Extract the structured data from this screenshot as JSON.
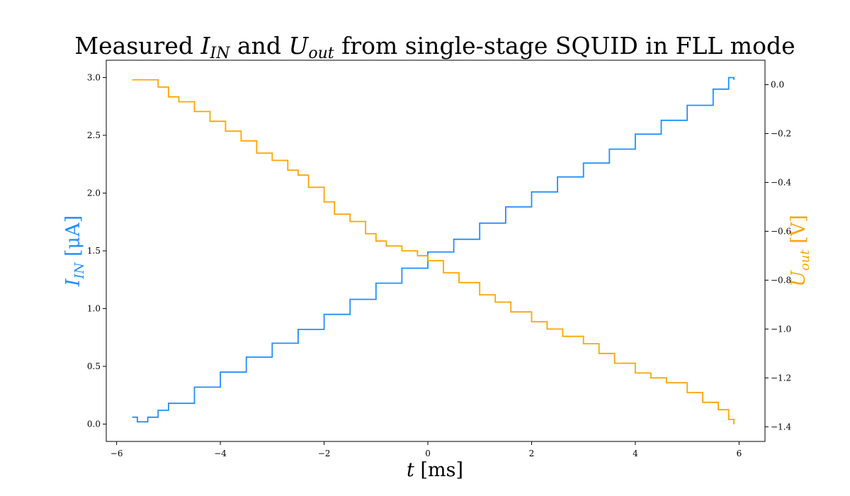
{
  "chart_data": {
    "type": "line",
    "title": {
      "prefix": "Measured ",
      "v1": "I",
      "v1_sub": "IN",
      "mid": " and ",
      "v2": "U",
      "v2_sub": "out",
      "suffix": " from single-stage SQUID in FLL mode"
    },
    "xlabel": {
      "var": "t",
      "unit": " [ms]"
    },
    "ylabel_left": {
      "var": "I",
      "sub": "IN",
      "unit": " [μA]"
    },
    "ylabel_right": {
      "var": "U",
      "sub": "out",
      "unit": " [V]"
    },
    "xlim": [
      -6.2,
      6.5
    ],
    "ylim_left": [
      -0.15,
      3.15
    ],
    "ylim_right": [
      -1.46,
      0.1
    ],
    "xticks": [
      "−6",
      "−4",
      "−2",
      "0",
      "2",
      "4",
      "6"
    ],
    "yticks_left": [
      "0.0",
      "0.5",
      "1.0",
      "1.5",
      "2.0",
      "2.5",
      "3.0"
    ],
    "yticks_right": [
      "0.0",
      "−0.2",
      "−0.4",
      "−0.6",
      "−0.8",
      "−1.0",
      "−1.2",
      "−1.4"
    ],
    "grid": false,
    "colors": {
      "series1": "#1f8fff",
      "series2": "#ffa500"
    },
    "series": [
      {
        "axis": "left",
        "x": [
          -5.7,
          -5.6,
          -5.4,
          -5.2,
          -5.0,
          -4.5,
          -4.0,
          -3.5,
          -3.0,
          -2.5,
          -2.0,
          -1.5,
          -1.0,
          -0.5,
          0.0,
          0.5,
          1.0,
          1.5,
          2.0,
          2.5,
          3.0,
          3.5,
          4.0,
          4.5,
          5.0,
          5.5,
          5.8,
          5.9
        ],
        "y": [
          0.06,
          0.02,
          0.06,
          0.12,
          0.18,
          0.32,
          0.45,
          0.58,
          0.7,
          0.82,
          0.95,
          1.08,
          1.22,
          1.35,
          1.49,
          1.6,
          1.74,
          1.88,
          2.01,
          2.14,
          2.26,
          2.38,
          2.51,
          2.63,
          2.76,
          2.9,
          3.0,
          2.98
        ]
      },
      {
        "axis": "right",
        "x": [
          -5.7,
          -5.2,
          -5.0,
          -4.8,
          -4.5,
          -4.2,
          -3.9,
          -3.6,
          -3.3,
          -3.0,
          -2.7,
          -2.5,
          -2.3,
          -2.0,
          -1.8,
          -1.5,
          -1.2,
          -1.0,
          -0.8,
          -0.5,
          -0.2,
          0.0,
          0.3,
          0.6,
          1.0,
          1.3,
          1.6,
          2.0,
          2.3,
          2.6,
          3.0,
          3.3,
          3.6,
          4.0,
          4.3,
          4.6,
          5.0,
          5.3,
          5.6,
          5.8,
          5.9
        ],
        "y": [
          0.02,
          -0.01,
          -0.05,
          -0.07,
          -0.11,
          -0.15,
          -0.19,
          -0.23,
          -0.28,
          -0.31,
          -0.35,
          -0.37,
          -0.42,
          -0.48,
          -0.53,
          -0.56,
          -0.61,
          -0.64,
          -0.66,
          -0.68,
          -0.7,
          -0.72,
          -0.77,
          -0.81,
          -0.86,
          -0.89,
          -0.93,
          -0.97,
          -1.0,
          -1.03,
          -1.06,
          -1.1,
          -1.14,
          -1.18,
          -1.2,
          -1.22,
          -1.26,
          -1.3,
          -1.33,
          -1.37,
          -1.39
        ]
      }
    ]
  }
}
